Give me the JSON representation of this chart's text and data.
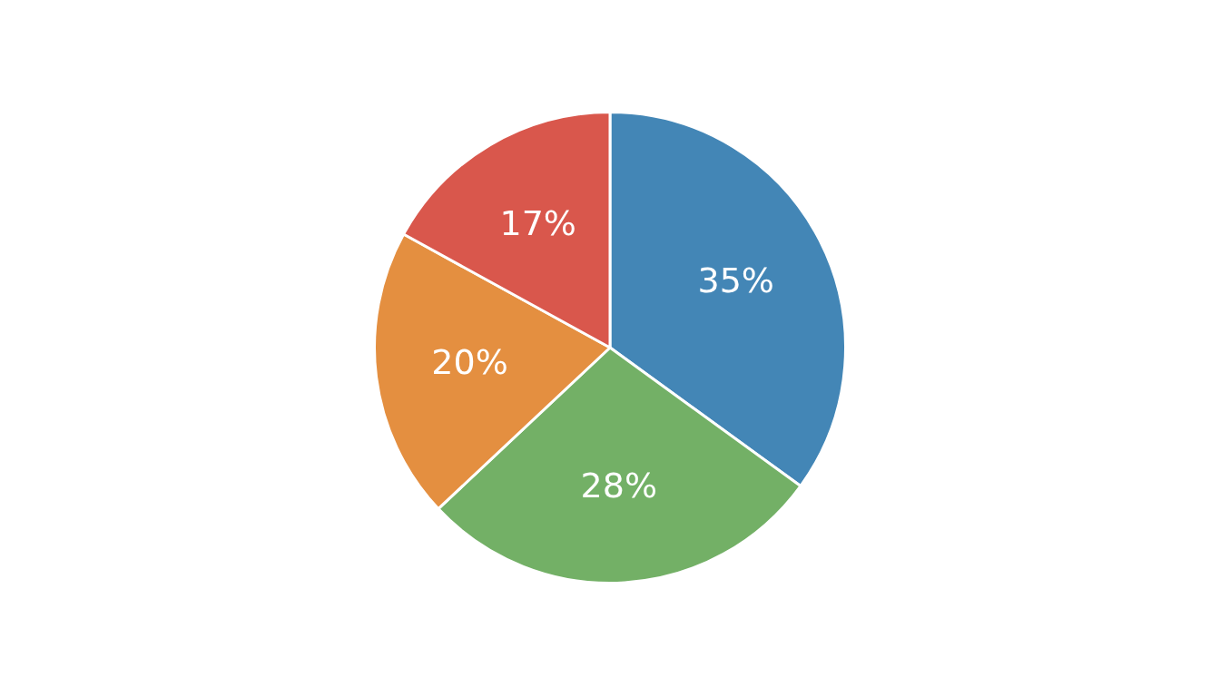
{
  "chart_data": {
    "type": "pie",
    "categories": [
      null,
      null,
      null,
      null
    ],
    "values": [
      35,
      28,
      20,
      17
    ],
    "colors": [
      "#4386b6",
      "#73b066",
      "#e48f40",
      "#d9574c"
    ],
    "value_labels": [
      "35%",
      "28%",
      "20%",
      "17%"
    ],
    "legend": false
  }
}
